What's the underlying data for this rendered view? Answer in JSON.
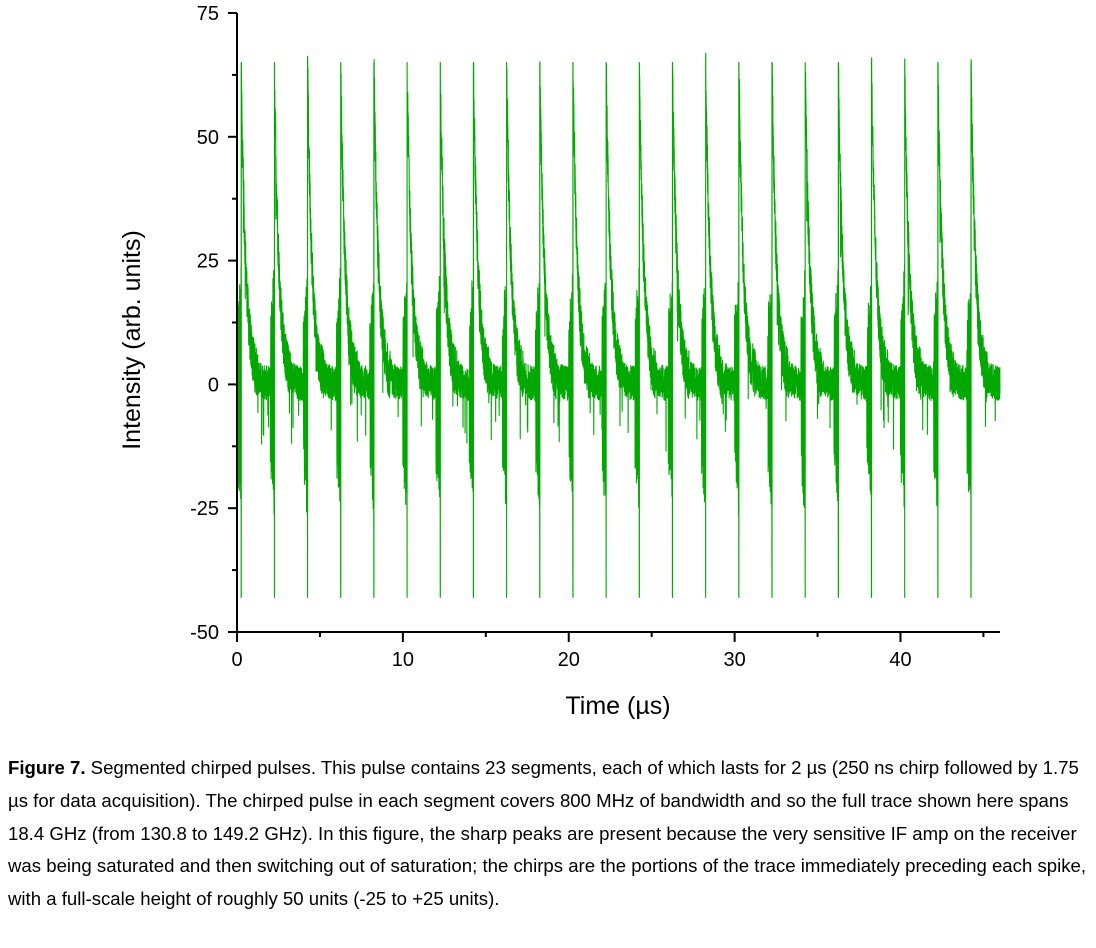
{
  "chart_data": {
    "type": "line",
    "xlabel": "Time (µs)",
    "ylabel": "Intensity (arb. units)",
    "xlim": [
      0,
      46
    ],
    "ylim": [
      -50,
      75
    ],
    "x_ticks": [
      0,
      10,
      20,
      30,
      40
    ],
    "y_ticks": [
      -50,
      -25,
      0,
      25,
      50,
      75
    ],
    "grid": false,
    "series": [
      {
        "color": "#00a800",
        "segment_count": 23,
        "segment_duration": 2,
        "chirp_duration": 0.25,
        "segment_start_times": [
          0.25,
          2.25,
          4.25,
          6.25,
          8.25,
          10.25,
          12.25,
          14.25,
          16.25,
          18.25,
          20.25,
          22.25,
          24.25,
          26.25,
          28.25,
          30.25,
          32.25,
          34.25,
          36.25,
          38.25,
          40.25,
          42.25,
          44.25
        ],
        "chirp_range": [
          -25,
          22
        ],
        "spike_peak": 65,
        "spike_min": -43,
        "baseline": 0
      }
    ]
  },
  "caption": {
    "label": "Figure 7.",
    "text": "  Segmented chirped pulses.  This pulse contains 23 segments, each of which lasts for 2 µs (250 ns chirp followed by 1.75 µs for data acquisition).  The chirped pulse in each segment covers 800 MHz of bandwidth and so the full trace shown here spans 18.4 GHz (from 130.8 to 149.2 GHz).  In this figure, the sharp peaks are present because the very sensitive IF amp on the receiver was being saturated and then switching out of saturation; the chirps are the portions of the trace immediately preceding each spike, with a full-scale height of roughly 50 units (-25 to +25 units)."
  }
}
